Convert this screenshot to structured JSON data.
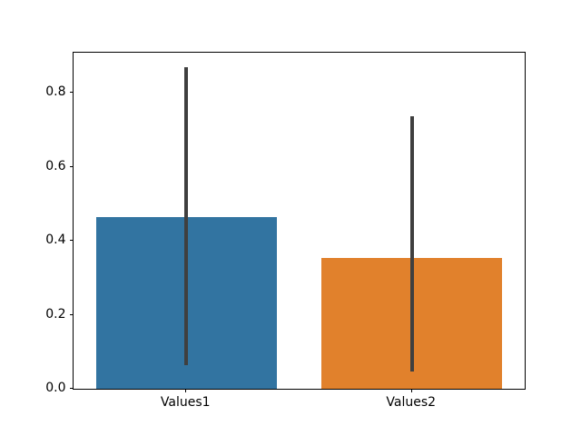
{
  "chart_data": {
    "type": "bar",
    "title": "",
    "xlabel": "",
    "ylabel": "",
    "categories": [
      "Values1",
      "Values2"
    ],
    "values": [
      0.465,
      0.354
    ],
    "error_bars": [
      {
        "low": 0.065,
        "high": 0.869
      },
      {
        "low": 0.047,
        "high": 0.737
      }
    ],
    "bar_colors": [
      "#3274a1",
      "#e1812c"
    ],
    "error_bar_color": "#3f3f3f",
    "axis_color": "#000000",
    "background_color": "#ffffff",
    "ylim": [
      0,
      0.908
    ],
    "yticks": [
      0.0,
      0.2,
      0.4,
      0.6,
      0.8
    ],
    "ytick_labels": [
      "0.0",
      "0.2",
      "0.4",
      "0.6",
      "0.8"
    ],
    "grid": false,
    "legend": null,
    "bar_width_fraction": 0.8
  }
}
